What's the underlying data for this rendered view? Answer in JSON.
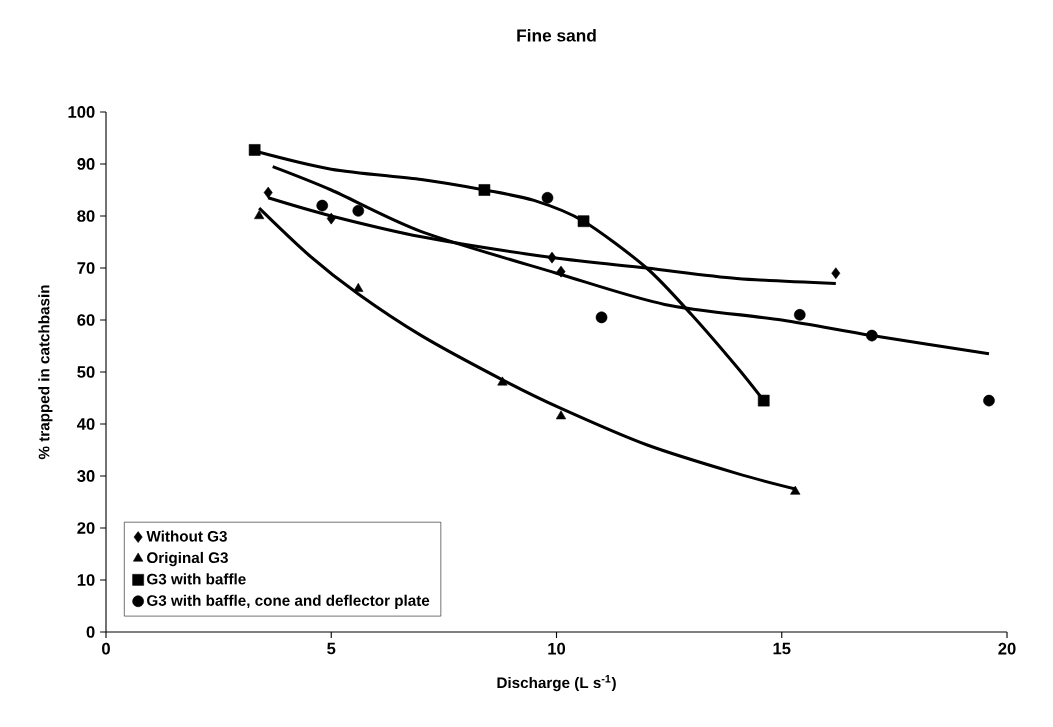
{
  "chart_data": {
    "type": "scatter",
    "title": "Fine sand",
    "xlabel": "Discharge (L s$^{-1}$)",
    "ylabel": "% trapped in catchbasin",
    "xlim": [
      0,
      20
    ],
    "ylim": [
      0,
      100
    ],
    "xticks": [
      0,
      5,
      10,
      15,
      20
    ],
    "yticks": [
      0,
      10,
      20,
      30,
      40,
      50,
      60,
      70,
      80,
      90,
      100
    ],
    "legend": "bottom left",
    "series": [
      {
        "name": "Without G3",
        "marker": "diamond",
        "color": "#000000",
        "x": [
          3.6,
          5.0,
          9.9,
          10.1,
          16.2
        ],
        "values": [
          84.5,
          79.5,
          72,
          69.3,
          69
        ]
      },
      {
        "name": "Original G3",
        "marker": "triangle",
        "color": "#000000",
        "x": [
          3.4,
          5.6,
          8.8,
          10.1,
          15.3
        ],
        "values": [
          80,
          66,
          48,
          41.5,
          27
        ]
      },
      {
        "name": "G3 with baffle",
        "marker": "square",
        "color": "#000000",
        "x": [
          3.3,
          8.4,
          10.6,
          14.6
        ],
        "values": [
          92.7,
          85,
          79,
          44.5
        ]
      },
      {
        "name": "G3 with baffle, cone and deflector plate",
        "marker": "circle",
        "color": "#000000",
        "x": [
          4.8,
          5.6,
          9.8,
          11.0,
          15.4,
          17.0,
          19.6
        ],
        "values": [
          82,
          81,
          83.5,
          60.5,
          61,
          57,
          44.5
        ]
      },
      {
        "type": "line",
        "marker": "none",
        "line_style": "solid",
        "color": "#000000",
        "x": [
          3.6,
          5,
          7,
          9.9,
          12,
          14,
          16.2
        ],
        "values": [
          83.5,
          80,
          76,
          72,
          70,
          68,
          67
        ]
      },
      {
        "type": "line",
        "marker": "none",
        "line_style": "solid",
        "color": "#000000",
        "x": [
          3.4,
          4.5,
          5.6,
          7,
          8.8,
          10.1,
          12,
          14,
          15.3
        ],
        "values": [
          81.5,
          72.5,
          65,
          57,
          48.5,
          43,
          36,
          30.5,
          27.5
        ]
      },
      {
        "type": "line",
        "marker": "none",
        "line_style": "solid",
        "color": "#000000",
        "x": [
          3.3,
          5,
          7,
          8.4,
          9.5,
          10.6,
          12,
          13,
          14,
          14.6
        ],
        "values": [
          92.5,
          89,
          87,
          85,
          83,
          79,
          70,
          61,
          51,
          44.5
        ]
      },
      {
        "type": "line",
        "marker": "none",
        "line_style": "solid",
        "color": "#000000",
        "x": [
          3.7,
          5,
          7,
          10,
          12.4,
          15,
          17,
          19.6
        ],
        "values": [
          89.5,
          85,
          77,
          69,
          63,
          60,
          57,
          53.5
        ]
      }
    ]
  }
}
